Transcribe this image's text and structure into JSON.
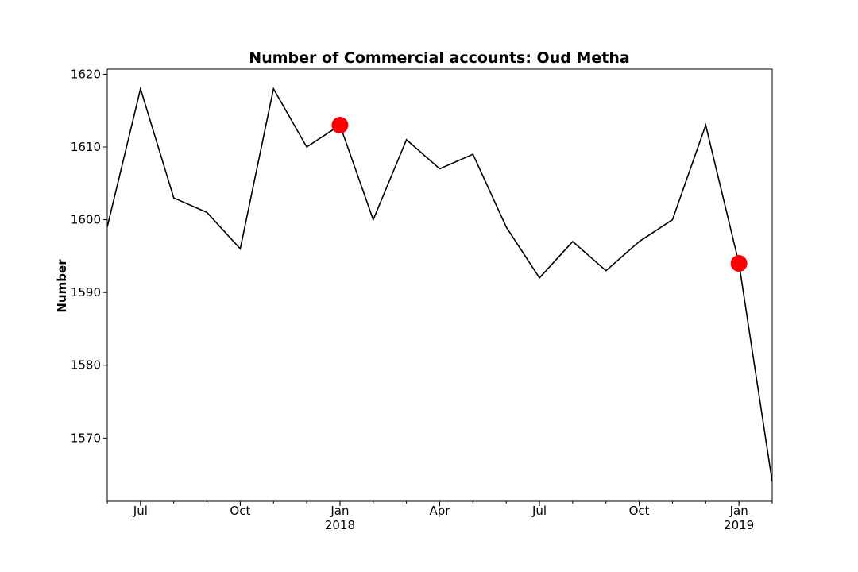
{
  "chart_data": {
    "type": "line",
    "title": "Number of Commercial accounts: Oud Metha",
    "xlabel": "",
    "ylabel": "Number",
    "x": [
      "2017-06",
      "2017-07",
      "2017-08",
      "2017-09",
      "2017-10",
      "2017-11",
      "2017-12",
      "2018-01",
      "2018-02",
      "2018-03",
      "2018-04",
      "2018-05",
      "2018-06",
      "2018-07",
      "2018-08",
      "2018-09",
      "2018-10",
      "2018-11",
      "2018-12",
      "2019-01",
      "2019-02"
    ],
    "series": [
      {
        "values": [
          1599,
          1618,
          1603,
          1601,
          1596,
          1618,
          1610,
          1613,
          1600,
          1611,
          1607,
          1609,
          1599,
          1592,
          1597,
          1593,
          1597,
          1600,
          1613,
          1594,
          1564
        ],
        "color": "#000000"
      }
    ],
    "highlights": [
      {
        "x": "2018-01",
        "y": 1613,
        "color": "#ff0000"
      },
      {
        "x": "2019-01",
        "y": 1594,
        "color": "#ff0000"
      }
    ],
    "ylim": [
      1561.3,
      1620.7
    ],
    "yticks": [
      1570,
      1580,
      1590,
      1600,
      1610,
      1620
    ],
    "xticks": [
      {
        "x": "2017-07",
        "label": "Jul",
        "sublabel": ""
      },
      {
        "x": "2017-10",
        "label": "Oct",
        "sublabel": ""
      },
      {
        "x": "2018-01",
        "label": "Jan",
        "sublabel": "2018"
      },
      {
        "x": "2018-04",
        "label": "Apr",
        "sublabel": ""
      },
      {
        "x": "2018-07",
        "label": "Jul",
        "sublabel": ""
      },
      {
        "x": "2018-10",
        "label": "Oct",
        "sublabel": ""
      },
      {
        "x": "2019-01",
        "label": "Jan",
        "sublabel": "2019"
      }
    ],
    "grid": false,
    "legend": "none"
  }
}
